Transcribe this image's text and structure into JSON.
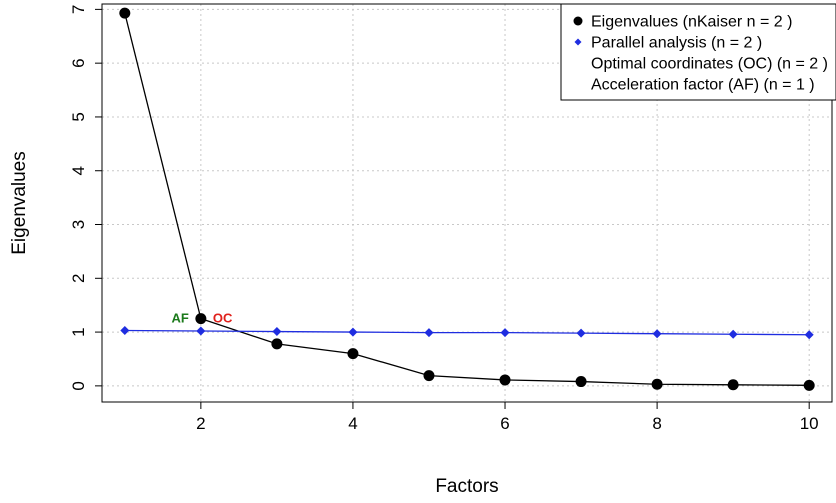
{
  "chart_data": {
    "type": "line",
    "xlabel": "Factors",
    "ylabel": "Eigenvalues",
    "xlim": [
      0.7,
      10.3
    ],
    "ylim": [
      -0.3,
      7.1
    ],
    "x_ticks": [
      2,
      4,
      6,
      8,
      10
    ],
    "y_ticks": [
      0,
      1,
      2,
      3,
      4,
      5,
      6,
      7
    ],
    "grid": true,
    "legend_position": "top-right",
    "x": [
      1,
      2,
      3,
      4,
      5,
      6,
      7,
      8,
      9,
      10
    ],
    "series": [
      {
        "name": "Eigenvalues (nKaiser n = 2 )",
        "marker": "circle",
        "color": "#000000",
        "values": [
          6.93,
          1.25,
          0.78,
          0.6,
          0.19,
          0.11,
          0.08,
          0.03,
          0.02,
          0.01
        ]
      },
      {
        "name": "Parallel analysis (n = 2 )",
        "marker": "diamond",
        "color": "#1f2de0",
        "values": [
          1.03,
          1.02,
          1.01,
          1.0,
          0.99,
          0.99,
          0.98,
          0.97,
          0.96,
          0.95
        ]
      }
    ],
    "legend": [
      {
        "label": "Eigenvalues (nKaiser n = 2 )",
        "symbol": "circle",
        "color": "#000000"
      },
      {
        "label": "Parallel analysis (n = 2 )",
        "symbol": "diamond",
        "color": "#1f2de0"
      },
      {
        "label": "Optimal coordinates (OC) (n = 2 )",
        "symbol": "none",
        "color": "#000000"
      },
      {
        "label": "Acceleration factor (AF) (n = 1 )",
        "symbol": "none",
        "color": "#000000"
      }
    ],
    "annotations": [
      {
        "text": "AF",
        "x": 2,
        "y": 1.25,
        "side": "left",
        "color": "#1b7a1b"
      },
      {
        "text": "OC",
        "x": 2,
        "y": 1.25,
        "side": "right",
        "color": "#e0201b"
      }
    ]
  }
}
